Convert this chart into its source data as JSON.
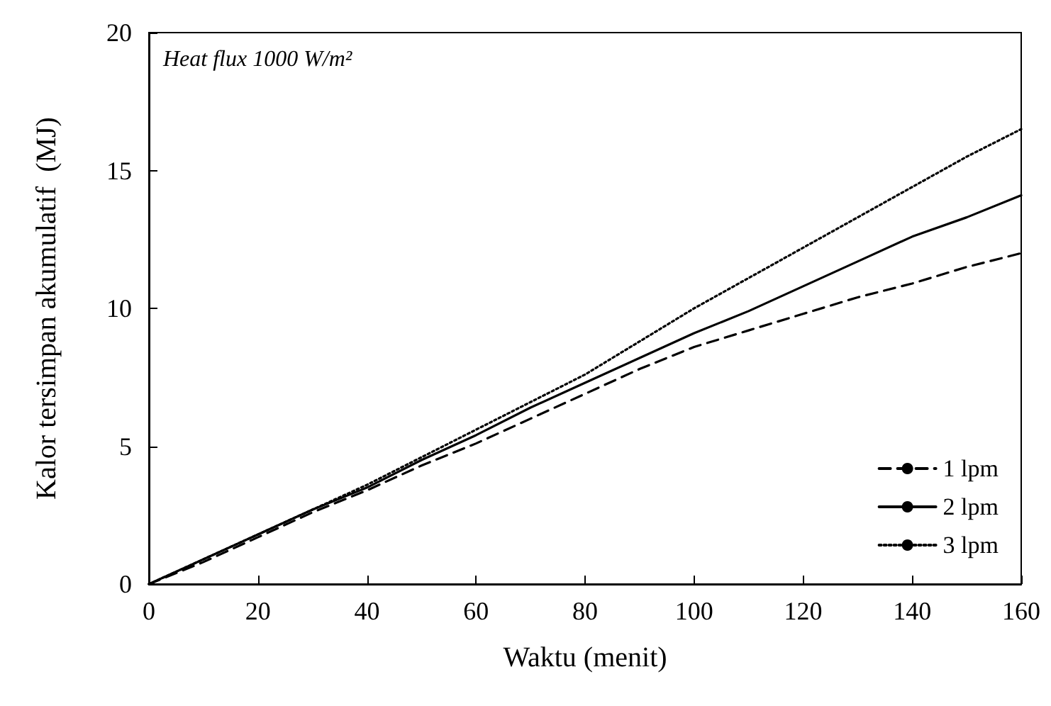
{
  "chart_data": {
    "type": "line",
    "xlabel": "Waktu (menit)",
    "ylabel": "Kalor tersimpan akumulatif  (MJ)",
    "annotations": [
      "Heat flux 1000 W/m²"
    ],
    "x": [
      0,
      10,
      20,
      30,
      40,
      50,
      60,
      70,
      80,
      90,
      100,
      110,
      120,
      130,
      140,
      150,
      160
    ],
    "series": [
      {
        "name": "1 lpm",
        "color": "#000000",
        "line_style": "dashed",
        "values": [
          0,
          0.8,
          1.7,
          2.6,
          3.4,
          4.3,
          5.1,
          6.0,
          6.9,
          7.8,
          8.6,
          9.2,
          9.8,
          10.4,
          10.9,
          11.5,
          12.0
        ]
      },
      {
        "name": "2 lpm",
        "color": "#000000",
        "line_style": "solid",
        "values": [
          0,
          0.9,
          1.8,
          2.7,
          3.5,
          4.5,
          5.4,
          6.4,
          7.3,
          8.2,
          9.1,
          9.9,
          10.8,
          11.7,
          12.6,
          13.3,
          14.1
        ]
      },
      {
        "name": "3 lpm",
        "color": "#000000",
        "line_style": "dotted",
        "values": [
          0,
          0.9,
          1.8,
          2.7,
          3.6,
          4.6,
          5.6,
          6.6,
          7.6,
          8.8,
          10.0,
          11.1,
          12.2,
          13.3,
          14.4,
          15.5,
          16.5
        ]
      }
    ],
    "xlim": [
      0,
      160
    ],
    "xticks": [
      0,
      20,
      40,
      60,
      80,
      100,
      120,
      140,
      160
    ],
    "ylim": [
      0,
      20
    ],
    "yticks": [
      0,
      5,
      10,
      15,
      20
    ],
    "grid": false,
    "legend": "bottom right",
    "marker": "none"
  }
}
